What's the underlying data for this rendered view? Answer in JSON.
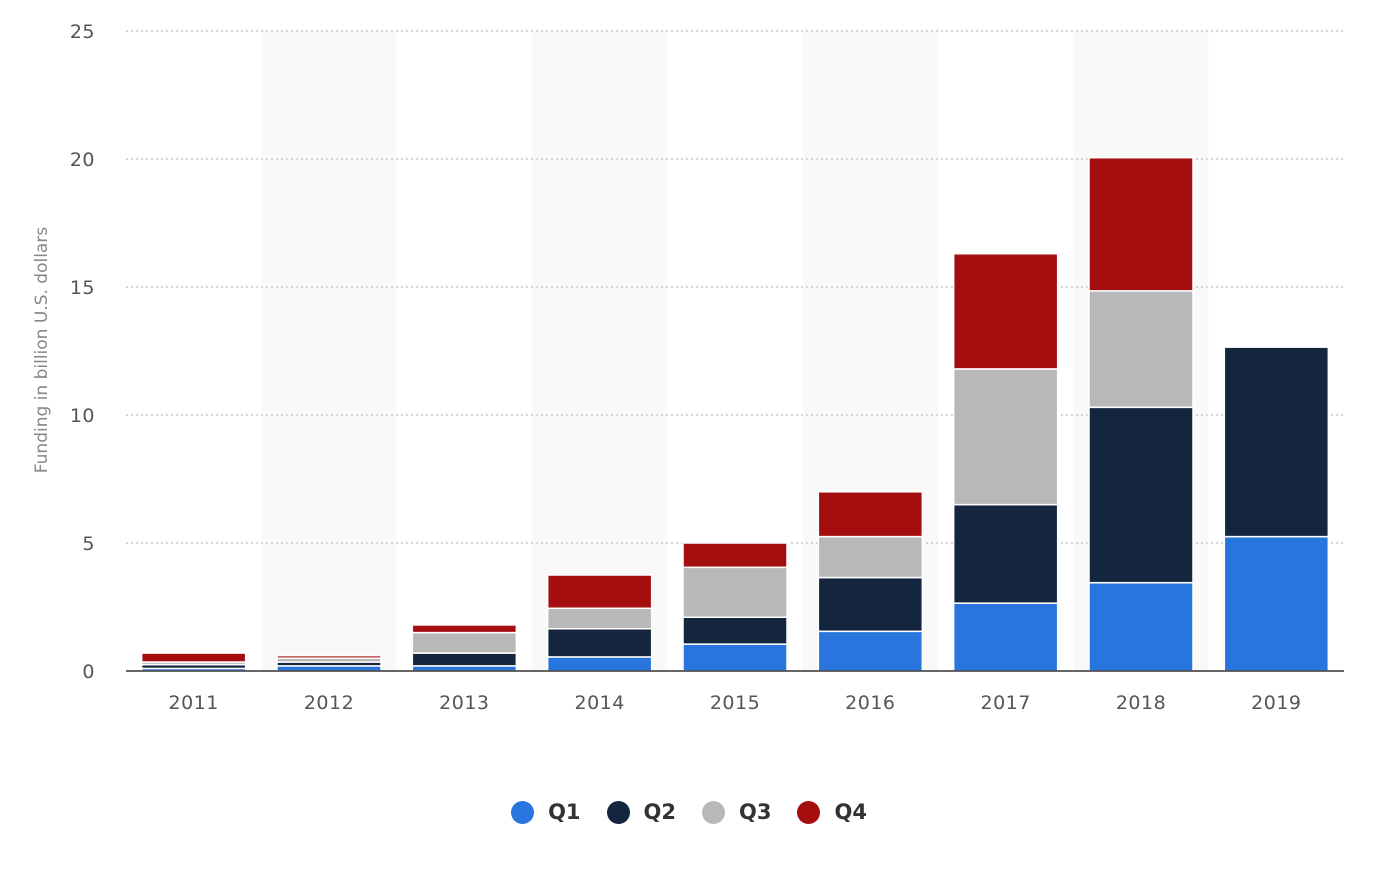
{
  "chart_data": {
    "type": "bar",
    "stacked": true,
    "categories": [
      "2011",
      "2012",
      "2013",
      "2014",
      "2015",
      "2016",
      "2017",
      "2018",
      "2019"
    ],
    "series": [
      {
        "name": "Q1",
        "color": "#2876dd",
        "values": [
          0.1,
          0.2,
          0.2,
          0.55,
          1.05,
          1.55,
          2.65,
          3.45,
          5.25
        ]
      },
      {
        "name": "Q2",
        "color": "#13263d",
        "values": [
          0.15,
          0.15,
          0.5,
          1.1,
          1.05,
          2.1,
          3.85,
          6.85,
          7.4
        ]
      },
      {
        "name": "Q3",
        "color": "#b8b8b8",
        "values": [
          0.1,
          0.15,
          0.8,
          0.8,
          1.95,
          1.6,
          5.3,
          4.55,
          0
        ]
      },
      {
        "name": "Q4",
        "color": "#a50e0e",
        "values": [
          0.35,
          0.1,
          0.3,
          1.3,
          0.95,
          1.75,
          4.5,
          5.2,
          0
        ]
      }
    ],
    "ylabel": "Funding in billion U.S. dollars",
    "xlabel": "",
    "ylim": [
      0,
      25
    ],
    "yticks": [
      0,
      5,
      10,
      15,
      20,
      25
    ],
    "grid": "horizontal-dotted",
    "legend_position": "bottom-center"
  }
}
